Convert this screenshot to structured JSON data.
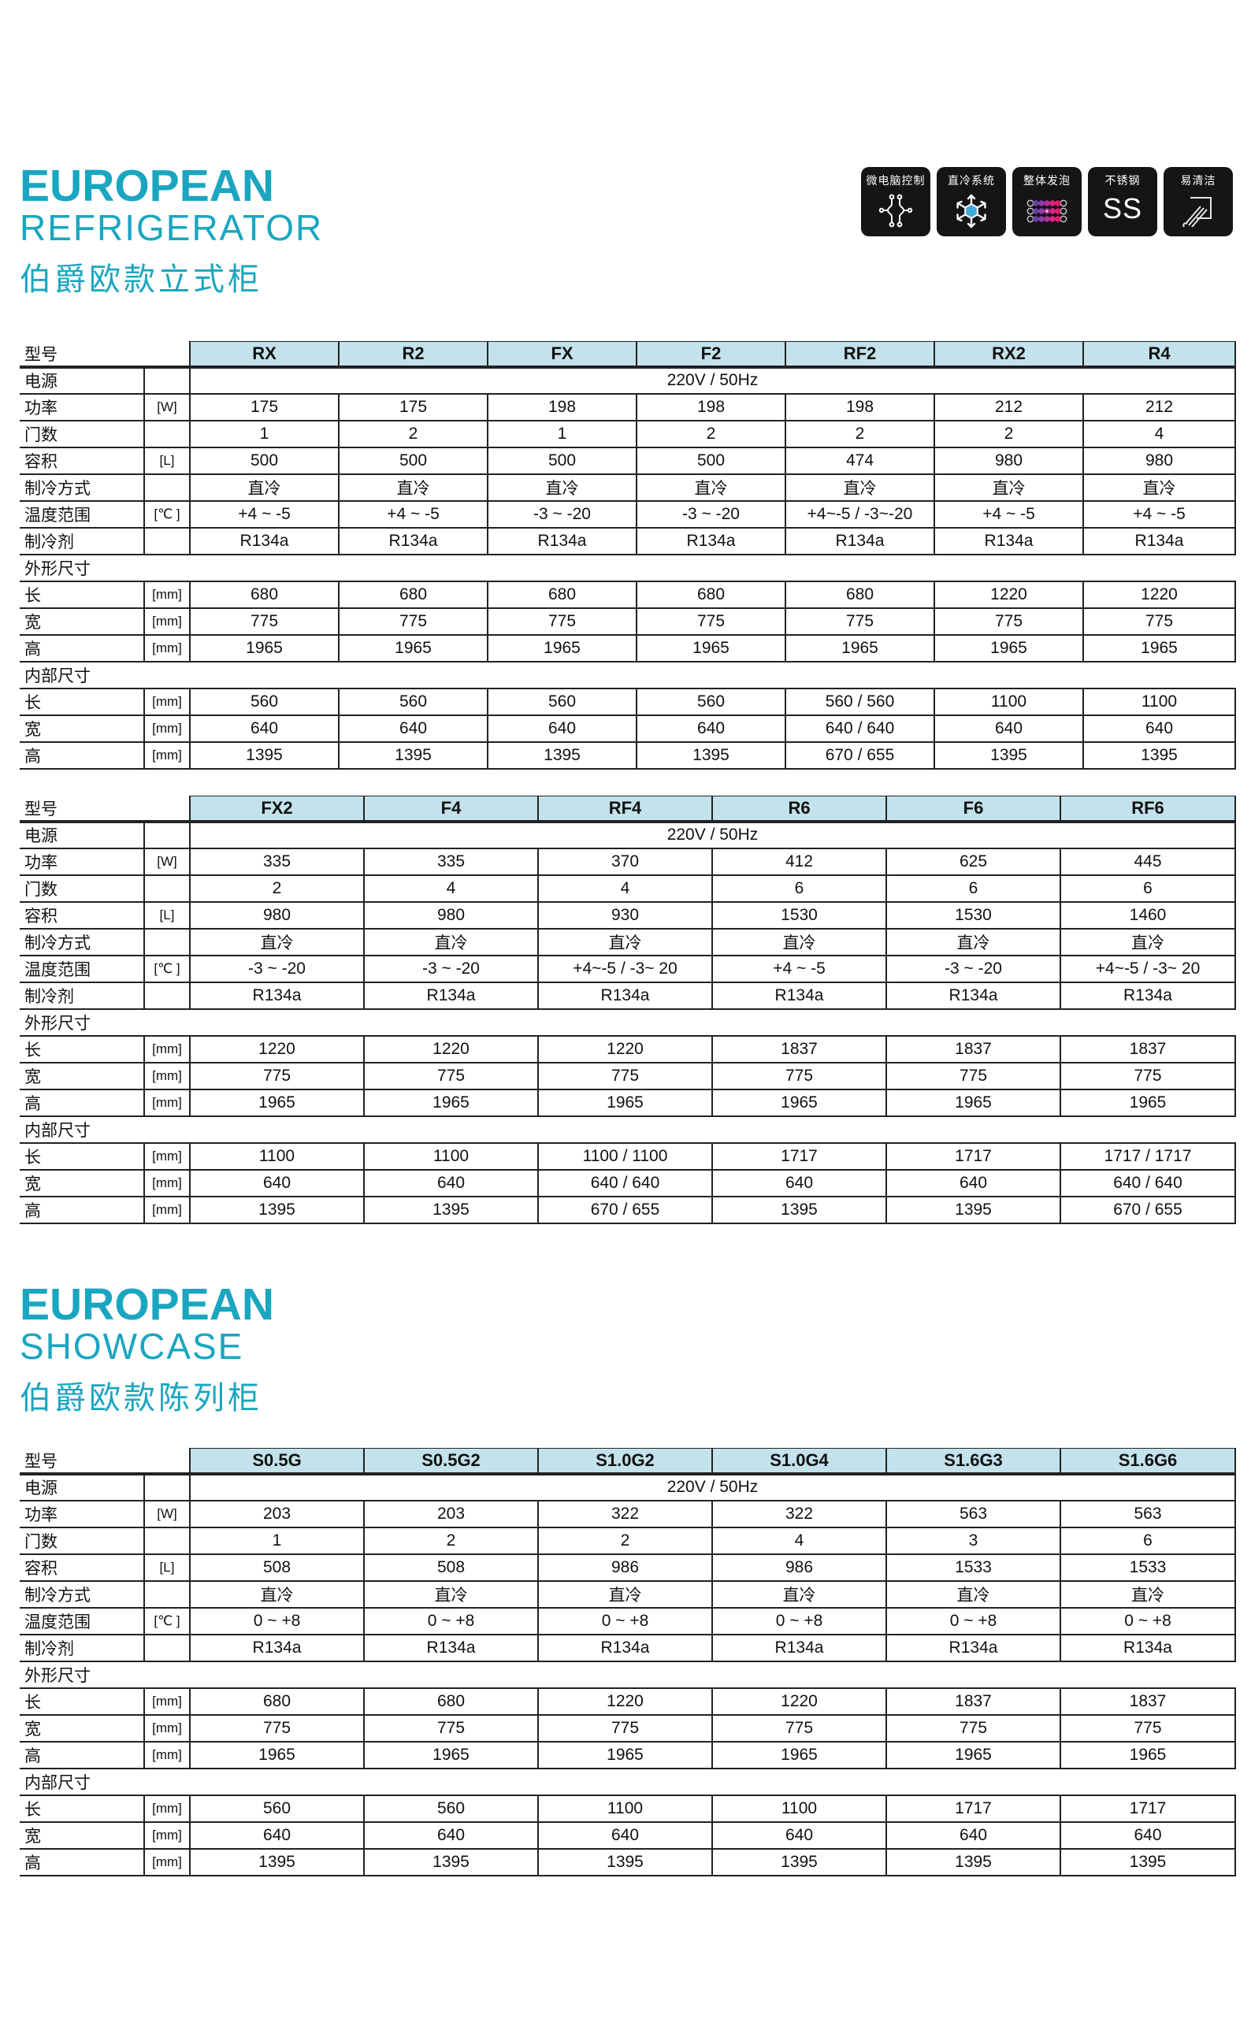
{
  "colors": {
    "accent": "#1AA6C0",
    "table_header_bg": "#C3E2EB",
    "badge_bg": "#151515",
    "line": "#222222"
  },
  "section1": {
    "title_line1": "EUROPEAN",
    "title_line2": "REFRIGERATOR",
    "subtitle": "伯爵欧款立式柜"
  },
  "section2": {
    "title_line1": "EUROPEAN",
    "title_line2": "SHOWCASE",
    "subtitle": "伯爵欧款陈列柜"
  },
  "badges": [
    {
      "label": "微电脑控制",
      "icon": "microcomputer-circuit-icon"
    },
    {
      "label": "直冷系统",
      "icon": "snowflake-icon"
    },
    {
      "label": "整体发泡",
      "icon": "foam-bubbles-icon"
    },
    {
      "label": "不锈钢",
      "icon": "ss-letters"
    },
    {
      "label": "易清洁",
      "icon": "wipe-clean-icon"
    }
  ],
  "ss_text": "SS",
  "labels": {
    "model": "型号",
    "power_supply": "电源",
    "power": "功率",
    "doors": "门数",
    "volume": "容积",
    "cooling_type": "制冷方式",
    "temp_range": "温度范围",
    "refrigerant": "制冷剂",
    "exterior_dims": "外形尺寸",
    "interior_dims": "内部尺寸",
    "length": "长",
    "width": "宽",
    "height": "高"
  },
  "tables": [
    {
      "models": [
        "RX",
        "R2",
        "FX",
        "F2",
        "RF2",
        "RX2",
        "R4"
      ],
      "rows": [
        {
          "label": "电源",
          "unit": "",
          "type": "merged",
          "value": "220V / 50Hz"
        },
        {
          "label": "功率",
          "unit": "[W]",
          "values": [
            "175",
            "175",
            "198",
            "198",
            "198",
            "212",
            "212"
          ]
        },
        {
          "label": "门数",
          "unit": "",
          "values": [
            "1",
            "2",
            "1",
            "2",
            "2",
            "2",
            "4"
          ]
        },
        {
          "label": "容积",
          "unit": "[L]",
          "values": [
            "500",
            "500",
            "500",
            "500",
            "474",
            "980",
            "980"
          ]
        },
        {
          "label": "制冷方式",
          "unit": "",
          "values": [
            "直冷",
            "直冷",
            "直冷",
            "直冷",
            "直冷",
            "直冷",
            "直冷"
          ]
        },
        {
          "label": "温度范围",
          "unit": "[℃ ]",
          "values": [
            "+4 ~ -5",
            "+4 ~ -5",
            "-3 ~ -20",
            "-3 ~ -20",
            "+4~-5 / -3~-20",
            "+4 ~ -5",
            "+4 ~ -5"
          ]
        },
        {
          "label": "制冷剂",
          "unit": "",
          "values": [
            "R134a",
            "R134a",
            "R134a",
            "R134a",
            "R134a",
            "R134a",
            "R134a"
          ]
        },
        {
          "label": "外形尺寸",
          "type": "section"
        },
        {
          "label": "长",
          "unit": "[mm]",
          "values": [
            "680",
            "680",
            "680",
            "680",
            "680",
            "1220",
            "1220"
          ]
        },
        {
          "label": "宽",
          "unit": "[mm]",
          "values": [
            "775",
            "775",
            "775",
            "775",
            "775",
            "775",
            "775"
          ]
        },
        {
          "label": "高",
          "unit": "[mm]",
          "values": [
            "1965",
            "1965",
            "1965",
            "1965",
            "1965",
            "1965",
            "1965"
          ]
        },
        {
          "label": "内部尺寸",
          "type": "section"
        },
        {
          "label": "长",
          "unit": "[mm]",
          "values": [
            "560",
            "560",
            "560",
            "560",
            "560 / 560",
            "1100",
            "1100"
          ]
        },
        {
          "label": "宽",
          "unit": "[mm]",
          "values": [
            "640",
            "640",
            "640",
            "640",
            "640 / 640",
            "640",
            "640"
          ]
        },
        {
          "label": "高",
          "unit": "[mm]",
          "values": [
            "1395",
            "1395",
            "1395",
            "1395",
            "670 / 655",
            "1395",
            "1395"
          ]
        }
      ]
    },
    {
      "models": [
        "FX2",
        "F4",
        "RF4",
        "R6",
        "F6",
        "RF6"
      ],
      "rows": [
        {
          "label": "电源",
          "unit": "",
          "type": "merged",
          "value": "220V / 50Hz"
        },
        {
          "label": "功率",
          "unit": "[W]",
          "values": [
            "335",
            "335",
            "370",
            "412",
            "625",
            "445"
          ]
        },
        {
          "label": "门数",
          "unit": "",
          "values": [
            "2",
            "4",
            "4",
            "6",
            "6",
            "6"
          ]
        },
        {
          "label": "容积",
          "unit": "[L]",
          "values": [
            "980",
            "980",
            "930",
            "1530",
            "1530",
            "1460"
          ]
        },
        {
          "label": "制冷方式",
          "unit": "",
          "values": [
            "直冷",
            "直冷",
            "直冷",
            "直冷",
            "直冷",
            "直冷"
          ]
        },
        {
          "label": "温度范围",
          "unit": "[℃ ]",
          "values": [
            "-3 ~ -20",
            "-3 ~ -20",
            "+4~-5 / -3~ 20",
            "+4 ~ -5",
            "-3 ~ -20",
            "+4~-5 / -3~ 20"
          ]
        },
        {
          "label": "制冷剂",
          "unit": "",
          "values": [
            "R134a",
            "R134a",
            "R134a",
            "R134a",
            "R134a",
            "R134a"
          ]
        },
        {
          "label": "外形尺寸",
          "type": "section"
        },
        {
          "label": "长",
          "unit": "[mm]",
          "values": [
            "1220",
            "1220",
            "1220",
            "1837",
            "1837",
            "1837"
          ]
        },
        {
          "label": "宽",
          "unit": "[mm]",
          "values": [
            "775",
            "775",
            "775",
            "775",
            "775",
            "775"
          ]
        },
        {
          "label": "高",
          "unit": "[mm]",
          "values": [
            "1965",
            "1965",
            "1965",
            "1965",
            "1965",
            "1965"
          ]
        },
        {
          "label": "内部尺寸",
          "type": "section"
        },
        {
          "label": "长",
          "unit": "[mm]",
          "values": [
            "1100",
            "1100",
            "1100 / 1100",
            "1717",
            "1717",
            "1717 / 1717"
          ]
        },
        {
          "label": "宽",
          "unit": "[mm]",
          "values": [
            "640",
            "640",
            "640 / 640",
            "640",
            "640",
            "640 / 640"
          ]
        },
        {
          "label": "高",
          "unit": "[mm]",
          "values": [
            "1395",
            "1395",
            "670 / 655",
            "1395",
            "1395",
            "670 / 655"
          ]
        }
      ]
    },
    {
      "models": [
        "S0.5G",
        "S0.5G2",
        "S1.0G2",
        "S1.0G4",
        "S1.6G3",
        "S1.6G6"
      ],
      "rows": [
        {
          "label": "电源",
          "unit": "",
          "type": "merged",
          "value": "220V / 50Hz"
        },
        {
          "label": "功率",
          "unit": "[W]",
          "values": [
            "203",
            "203",
            "322",
            "322",
            "563",
            "563"
          ]
        },
        {
          "label": "门数",
          "unit": "",
          "values": [
            "1",
            "2",
            "2",
            "4",
            "3",
            "6"
          ]
        },
        {
          "label": "容积",
          "unit": "[L]",
          "values": [
            "508",
            "508",
            "986",
            "986",
            "1533",
            "1533"
          ]
        },
        {
          "label": "制冷方式",
          "unit": "",
          "values": [
            "直冷",
            "直冷",
            "直冷",
            "直冷",
            "直冷",
            "直冷"
          ]
        },
        {
          "label": "温度范围",
          "unit": "[℃ ]",
          "values": [
            "0 ~ +8",
            "0 ~ +8",
            "0 ~ +8",
            "0 ~ +8",
            "0 ~ +8",
            "0 ~ +8"
          ]
        },
        {
          "label": "制冷剂",
          "unit": "",
          "values": [
            "R134a",
            "R134a",
            "R134a",
            "R134a",
            "R134a",
            "R134a"
          ]
        },
        {
          "label": "外形尺寸",
          "type": "section"
        },
        {
          "label": "长",
          "unit": "[mm]",
          "values": [
            "680",
            "680",
            "1220",
            "1220",
            "1837",
            "1837"
          ]
        },
        {
          "label": "宽",
          "unit": "[mm]",
          "values": [
            "775",
            "775",
            "775",
            "775",
            "775",
            "775"
          ]
        },
        {
          "label": "高",
          "unit": "[mm]",
          "values": [
            "1965",
            "1965",
            "1965",
            "1965",
            "1965",
            "1965"
          ]
        },
        {
          "label": "内部尺寸",
          "type": "section"
        },
        {
          "label": "长",
          "unit": "[mm]",
          "values": [
            "560",
            "560",
            "1100",
            "1100",
            "1717",
            "1717"
          ]
        },
        {
          "label": "宽",
          "unit": "[mm]",
          "values": [
            "640",
            "640",
            "640",
            "640",
            "640",
            "640"
          ]
        },
        {
          "label": "高",
          "unit": "[mm]",
          "values": [
            "1395",
            "1395",
            "1395",
            "1395",
            "1395",
            "1395"
          ]
        }
      ]
    }
  ]
}
